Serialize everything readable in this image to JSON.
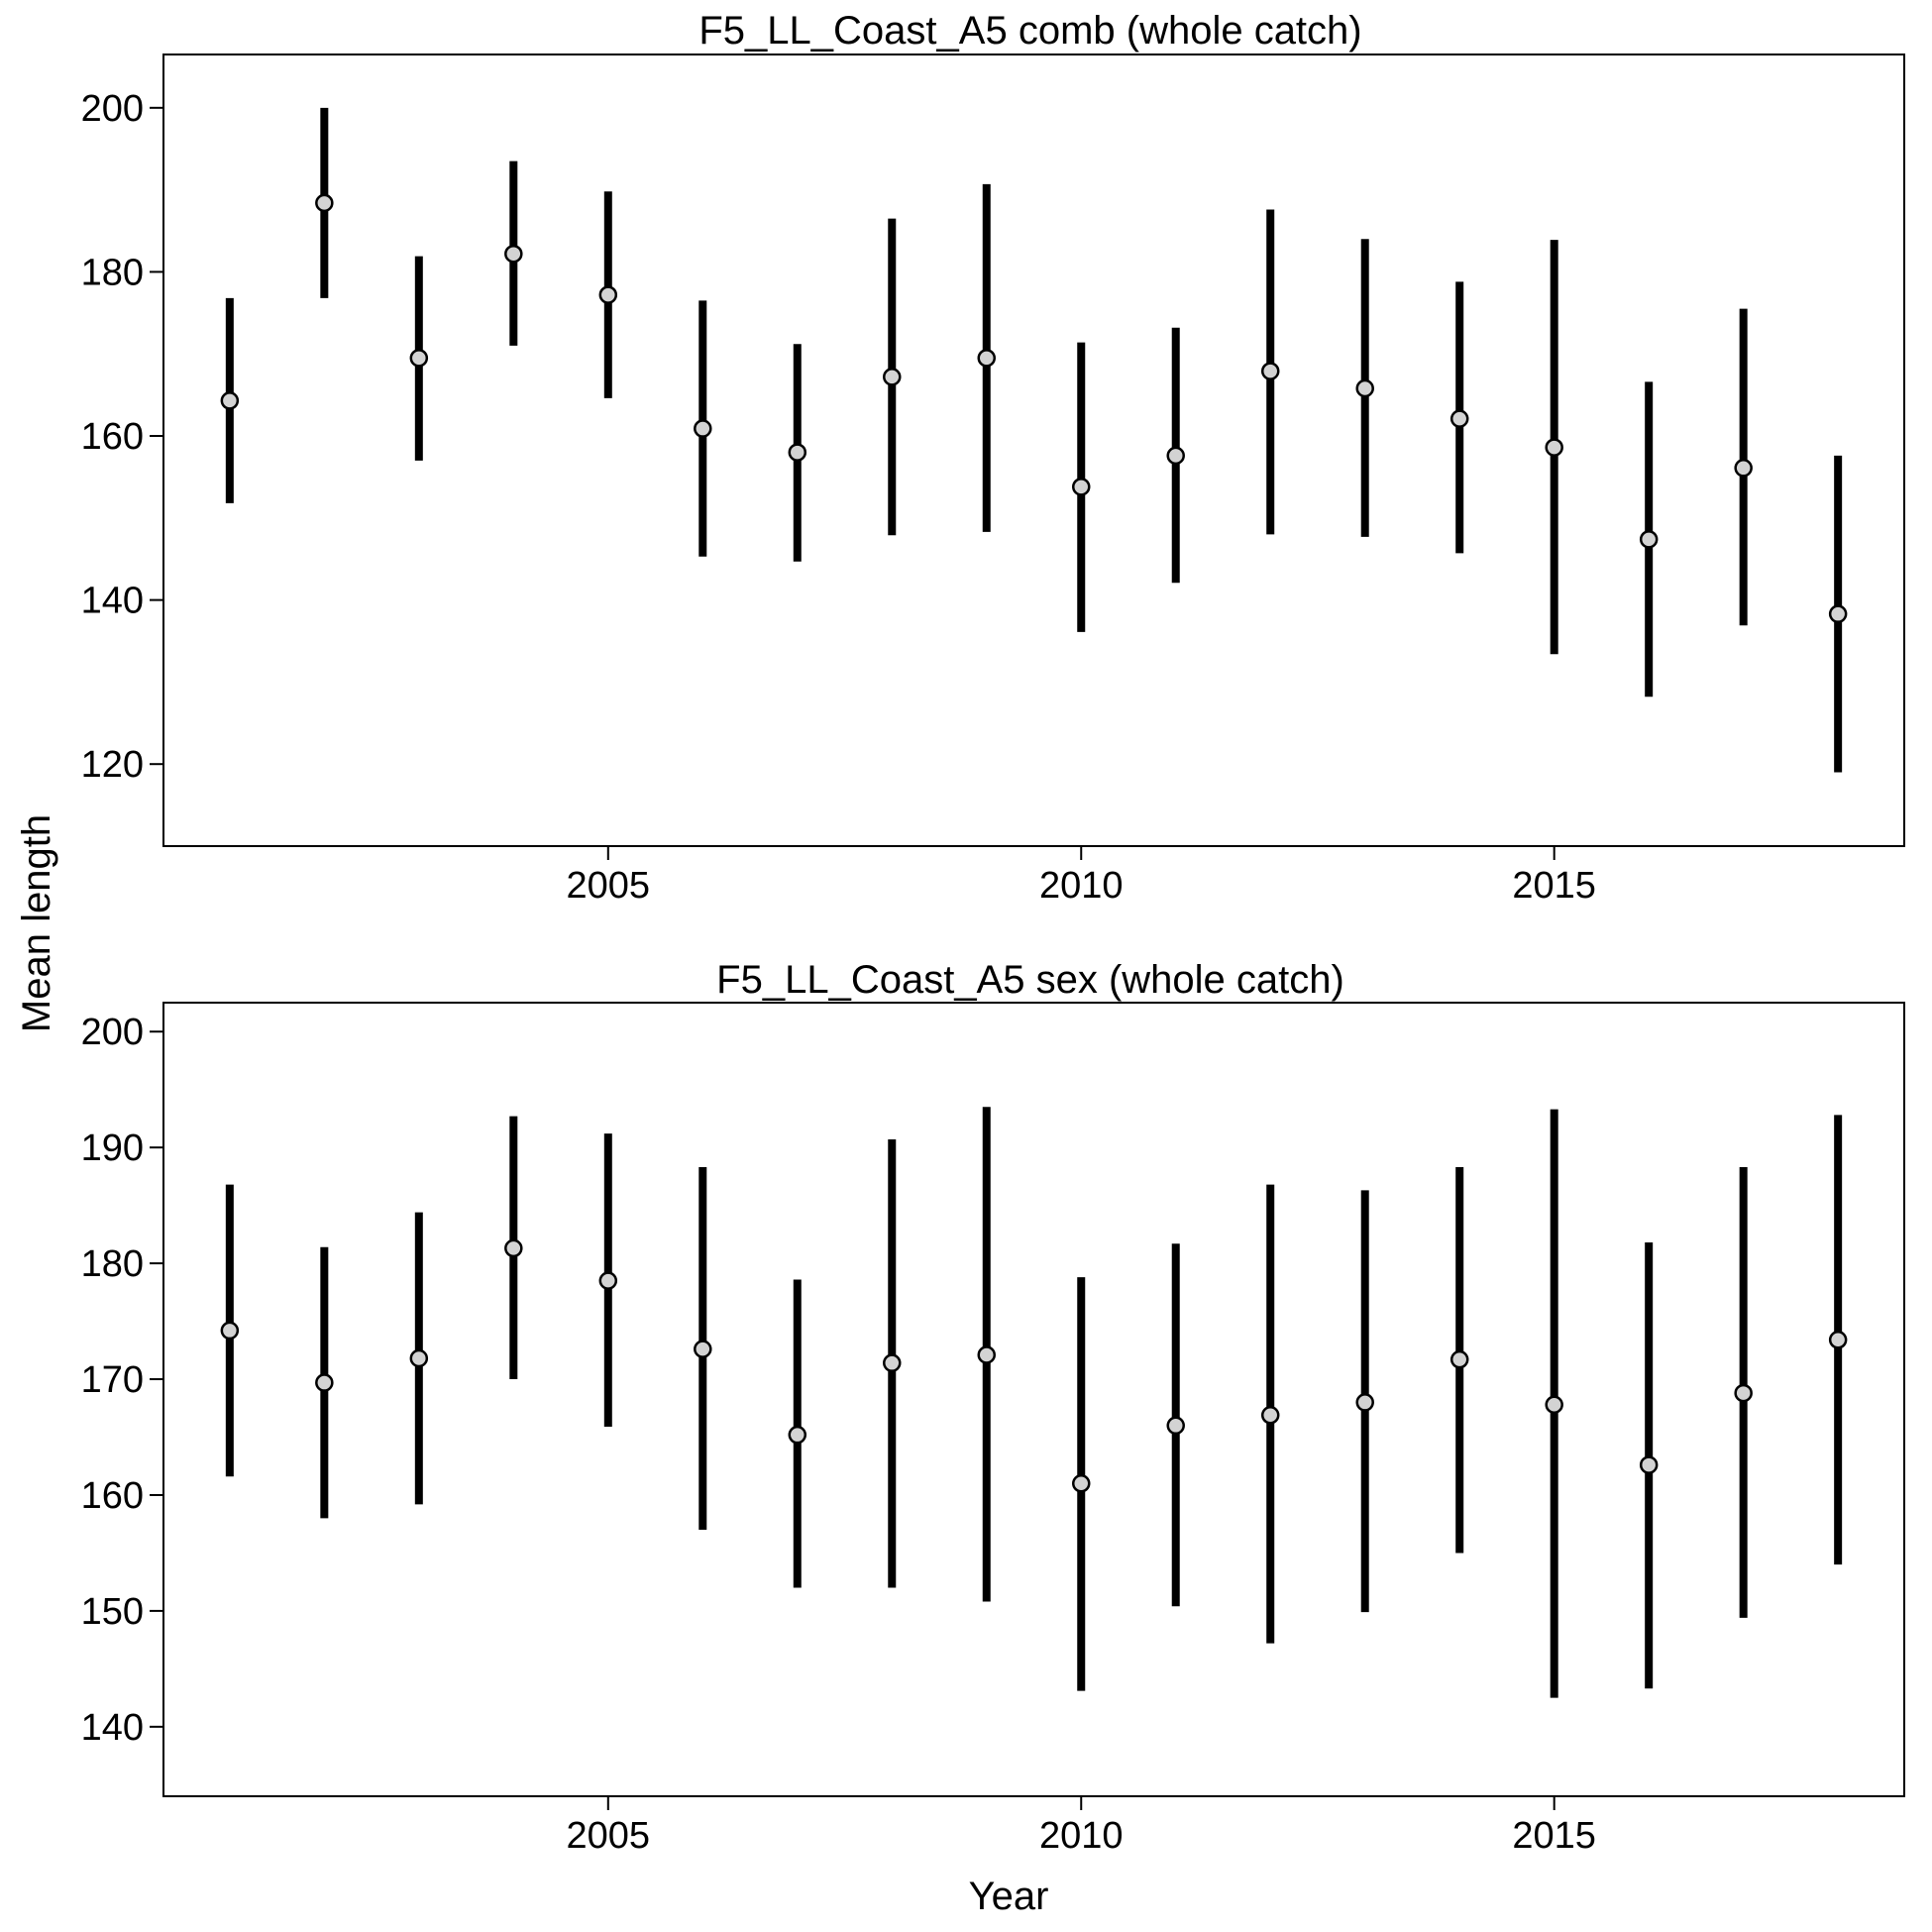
{
  "figure": {
    "ylabel": "Mean length",
    "xlabel": "Year",
    "colors": {
      "bar": "#000000",
      "point_fill": "#d3d3d3",
      "point_stroke": "#000000",
      "frame": "#000000"
    }
  },
  "chart_data": [
    {
      "type": "errorbar",
      "title": "F5_LL_Coast_A5 comb (whole catch)",
      "xlabel": "Year",
      "ylabel": "Mean length",
      "xlim": [
        2000.3,
        2018.7
      ],
      "ylim": [
        110,
        206.5
      ],
      "xticks": [
        2005,
        2010,
        2015
      ],
      "yticks": [
        120,
        140,
        160,
        180,
        200
      ],
      "grid": false,
      "legend": "none",
      "x": [
        2001,
        2002,
        2003,
        2004,
        2005,
        2006,
        2007,
        2008,
        2009,
        2010,
        2011,
        2012,
        2013,
        2014,
        2015,
        2016,
        2017,
        2018
      ],
      "mean": [
        164.3,
        188.4,
        169.5,
        182.2,
        177.2,
        160.9,
        158.0,
        167.2,
        169.5,
        153.8,
        157.6,
        167.9,
        165.8,
        162.1,
        158.6,
        147.4,
        156.1,
        138.3
      ],
      "lower": [
        151.8,
        176.8,
        157.0,
        171.0,
        164.6,
        145.3,
        144.7,
        147.9,
        148.3,
        136.1,
        142.1,
        148.0,
        147.7,
        145.7,
        133.4,
        128.2,
        136.9,
        119.0
      ],
      "upper": [
        176.8,
        200.0,
        181.9,
        193.5,
        189.8,
        176.5,
        171.2,
        186.5,
        190.7,
        171.4,
        173.2,
        187.6,
        184.0,
        178.8,
        183.9,
        166.6,
        175.5,
        157.6
      ]
    },
    {
      "type": "errorbar",
      "title": "F5_LL_Coast_A5 sex (whole catch)",
      "xlabel": "Year",
      "ylabel": "Mean length",
      "xlim": [
        2000.3,
        2018.7
      ],
      "ylim": [
        134,
        202.5
      ],
      "xticks": [
        2005,
        2010,
        2015
      ],
      "yticks": [
        140,
        150,
        160,
        170,
        180,
        190,
        200
      ],
      "grid": false,
      "legend": "none",
      "x": [
        2001,
        2002,
        2003,
        2004,
        2005,
        2006,
        2007,
        2008,
        2009,
        2010,
        2011,
        2012,
        2013,
        2014,
        2015,
        2016,
        2017,
        2018
      ],
      "mean": [
        174.2,
        169.7,
        171.8,
        181.3,
        178.5,
        172.6,
        165.2,
        171.4,
        172.1,
        161.0,
        166.0,
        166.9,
        168.0,
        171.7,
        167.8,
        162.6,
        168.8,
        173.4
      ],
      "lower": [
        161.6,
        158.0,
        159.2,
        170.0,
        165.9,
        157.0,
        152.0,
        152.0,
        150.8,
        143.1,
        150.4,
        147.2,
        149.9,
        155.0,
        142.5,
        143.3,
        149.4,
        154.0
      ],
      "upper": [
        186.8,
        181.4,
        184.4,
        192.7,
        191.2,
        188.3,
        178.6,
        190.7,
        193.5,
        178.8,
        181.7,
        186.8,
        186.3,
        188.3,
        193.3,
        181.8,
        188.3,
        192.8
      ]
    }
  ]
}
